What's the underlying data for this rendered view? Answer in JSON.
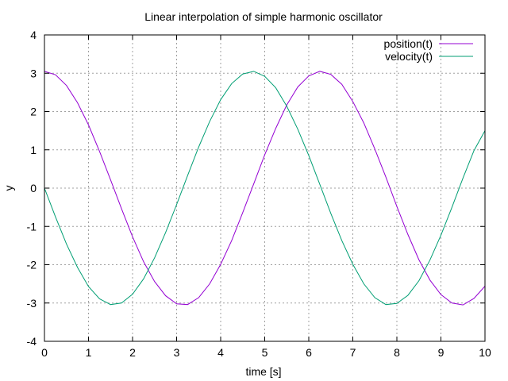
{
  "chart_data": {
    "type": "line",
    "title": "Linear interpolation of simple harmonic oscillator",
    "xlabel": "time [s]",
    "ylabel": "y",
    "xlim": [
      0,
      10
    ],
    "ylim": [
      -4,
      4
    ],
    "xticks": [
      0,
      1,
      2,
      3,
      4,
      5,
      6,
      7,
      8,
      9,
      10
    ],
    "yticks": [
      -4,
      -3,
      -2,
      -1,
      0,
      1,
      2,
      3,
      4
    ],
    "grid": true,
    "legend_position": "top-right",
    "x": [
      0,
      0.25,
      0.5,
      0.75,
      1,
      1.25,
      1.5,
      1.75,
      2,
      2.25,
      2.5,
      2.75,
      3,
      3.25,
      3.5,
      3.75,
      4,
      4.25,
      4.5,
      4.75,
      5,
      5.25,
      5.5,
      5.75,
      6,
      6.25,
      6.5,
      6.75,
      7,
      7.25,
      7.5,
      7.75,
      8,
      8.25,
      8.5,
      8.75,
      9,
      9.25,
      9.5,
      9.75,
      10
    ],
    "series": [
      {
        "name": "position(t)",
        "color": "#9400d3",
        "values": [
          3.05,
          2.96,
          2.68,
          2.23,
          1.65,
          0.96,
          0.22,
          -0.54,
          -1.27,
          -1.92,
          -2.44,
          -2.81,
          -3.02,
          -3.04,
          -2.86,
          -2.5,
          -1.99,
          -1.37,
          -0.64,
          0.11,
          0.87,
          1.56,
          2.17,
          2.64,
          2.93,
          3.05,
          2.97,
          2.71,
          2.26,
          1.7,
          1.02,
          0.29,
          -0.48,
          -1.21,
          -1.87,
          -2.4,
          -2.78,
          -3.0,
          -3.05,
          -2.88,
          -2.56
        ]
      },
      {
        "name": "velocity(t)",
        "color": "#009e73",
        "values": [
          0.0,
          -0.75,
          -1.46,
          -2.07,
          -2.57,
          -2.89,
          -3.04,
          -3.0,
          -2.77,
          -2.37,
          -1.82,
          -1.16,
          -0.43,
          0.33,
          1.07,
          1.74,
          2.31,
          2.73,
          2.98,
          3.05,
          2.92,
          2.62,
          2.14,
          1.54,
          0.85,
          0.1,
          -0.66,
          -1.37,
          -1.99,
          -2.5,
          -2.86,
          -3.04,
          -3.01,
          -2.8,
          -2.42,
          -1.88,
          -1.23,
          -0.5,
          0.26,
          0.98,
          1.5
        ]
      }
    ]
  }
}
